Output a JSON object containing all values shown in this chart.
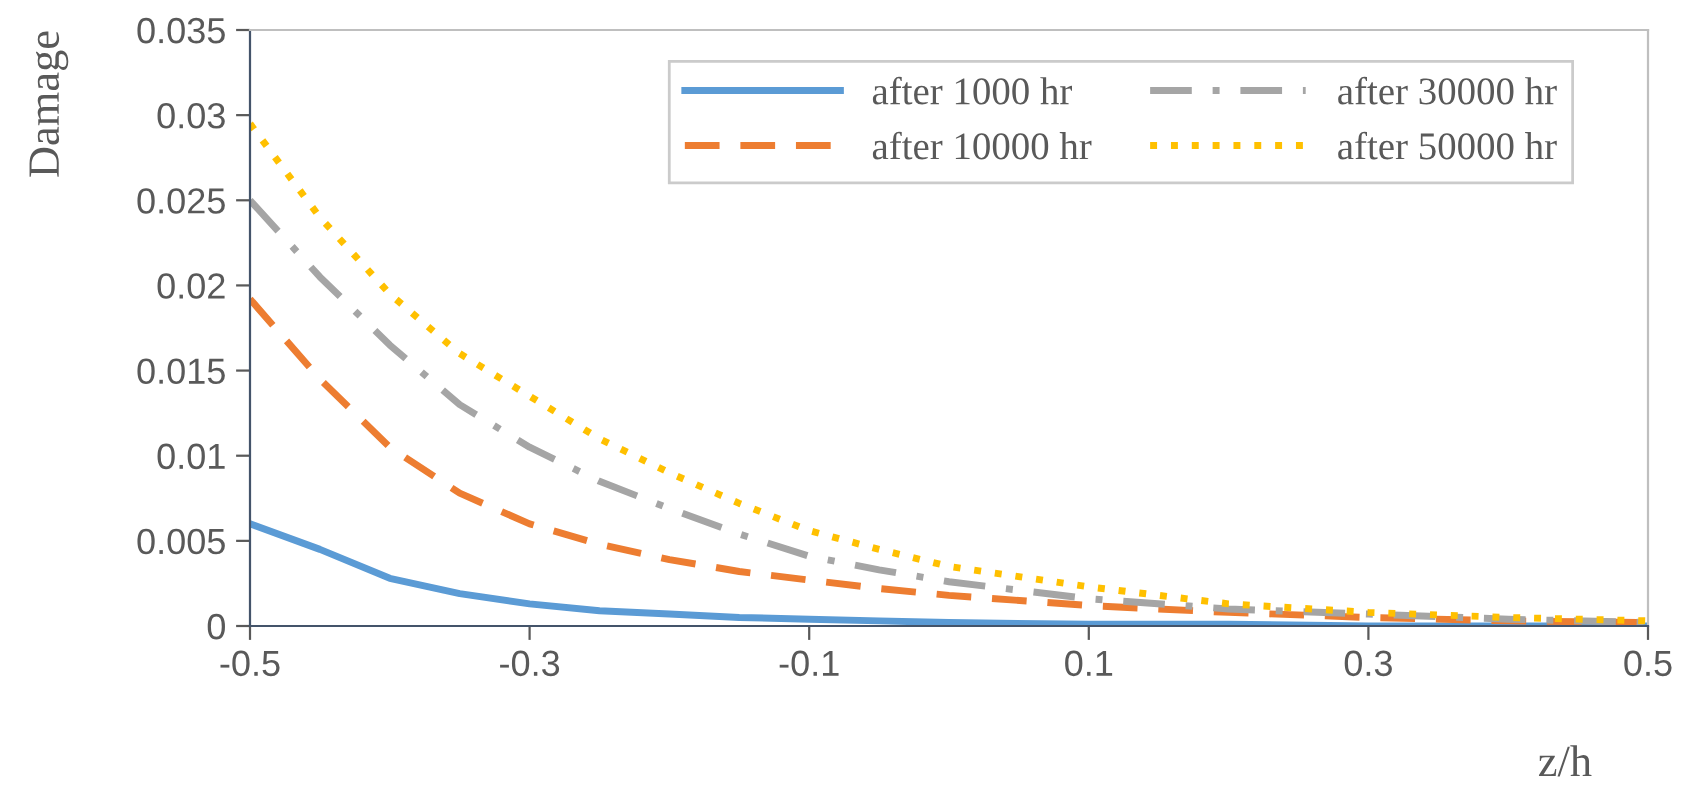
{
  "chart_data": {
    "type": "line",
    "xlabel": "z/h",
    "ylabel": "Damage",
    "x": [
      -0.5,
      -0.45,
      -0.4,
      -0.35,
      -0.3,
      -0.25,
      -0.2,
      -0.15,
      -0.1,
      -0.05,
      0,
      0.1,
      0.2,
      0.3,
      0.4,
      0.5
    ],
    "series": [
      {
        "name": "after 1000 hr",
        "color": "#5b9bd5",
        "line_style": "solid",
        "values": [
          0.006,
          0.0045,
          0.0028,
          0.0019,
          0.0013,
          0.0009,
          0.0007,
          0.0005,
          0.0004,
          0.0003,
          0.0002,
          0.0001,
          0.0001,
          0.0,
          0.0,
          0.0
        ]
      },
      {
        "name": "after 10000 hr",
        "color": "#ed7d31",
        "line_style": "dashed",
        "values": [
          0.0192,
          0.0145,
          0.0105,
          0.0078,
          0.006,
          0.0048,
          0.0039,
          0.0032,
          0.0027,
          0.0022,
          0.0018,
          0.0012,
          0.0008,
          0.0005,
          0.0003,
          0.0002
        ]
      },
      {
        "name": "after 30000 hr",
        "color": "#a5a5a5",
        "line_style": "dashdot",
        "values": [
          0.025,
          0.0205,
          0.0165,
          0.013,
          0.0105,
          0.0085,
          0.0069,
          0.0054,
          0.0041,
          0.0033,
          0.0026,
          0.0016,
          0.001,
          0.0007,
          0.0004,
          0.0002
        ]
      },
      {
        "name": "after 50000 hr",
        "color": "#ffc000",
        "line_style": "dotted",
        "values": [
          0.0295,
          0.024,
          0.0195,
          0.016,
          0.0135,
          0.011,
          0.009,
          0.0072,
          0.0056,
          0.0045,
          0.0035,
          0.0023,
          0.0013,
          0.0008,
          0.0005,
          0.0003
        ]
      }
    ],
    "xlim": [
      -0.5,
      0.5
    ],
    "xticks": [
      -0.5,
      -0.3,
      -0.1,
      0.1,
      0.3,
      0.5
    ],
    "ylim": [
      0,
      0.035
    ],
    "yticks": [
      0,
      0.005,
      0.01,
      0.015,
      0.02,
      0.025,
      0.03,
      0.035
    ],
    "grid": false,
    "legend": "top right"
  }
}
